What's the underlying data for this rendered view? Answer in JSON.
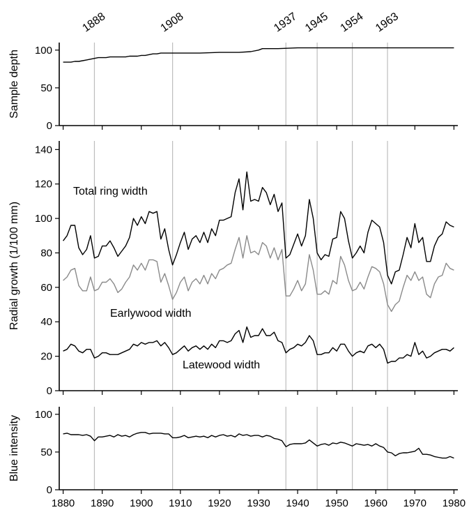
{
  "event_years": [
    "1888",
    "1908",
    "1937",
    "1945",
    "1954",
    "1963"
  ],
  "chart_data": [
    {
      "type": "line",
      "ylabel": "Sample depth",
      "ylim": [
        0,
        110
      ],
      "yticks": [
        0,
        50,
        100
      ],
      "xlim": [
        1879,
        1981
      ],
      "series": [
        {
          "color": "#000000",
          "x": [
            1880,
            1881,
            1882,
            1883,
            1884,
            1885,
            1886,
            1887,
            1888,
            1889,
            1890,
            1891,
            1892,
            1893,
            1894,
            1895,
            1896,
            1897,
            1898,
            1899,
            1900,
            1901,
            1902,
            1903,
            1904,
            1905,
            1906,
            1907,
            1908,
            1909,
            1910,
            1915,
            1920,
            1925,
            1928,
            1930,
            1931,
            1935,
            1940,
            1945,
            1950,
            1960,
            1970,
            1980
          ],
          "values": [
            84,
            84,
            84,
            85,
            85,
            86,
            87,
            88,
            89,
            90,
            90,
            90,
            91,
            91,
            91,
            91,
            91,
            92,
            92,
            92,
            93,
            93,
            94,
            95,
            95,
            96,
            96,
            96,
            96,
            96,
            96,
            96,
            97,
            97,
            98,
            100,
            102,
            102,
            103,
            103,
            103,
            103,
            103,
            103
          ]
        }
      ]
    },
    {
      "type": "line",
      "ylabel": "Radial growth (1/100 mm)",
      "ylim": [
        0,
        145
      ],
      "yticks": [
        0,
        20,
        40,
        60,
        80,
        100,
        120,
        140
      ],
      "xlim": [
        1879,
        1981
      ],
      "annotations": [
        "Total ring width",
        "Earlywood width",
        "Latewood width"
      ],
      "series": [
        {
          "color": "#000000",
          "x": [
            1880,
            1881,
            1882,
            1883,
            1884,
            1885,
            1886,
            1887,
            1888,
            1889,
            1890,
            1891,
            1892,
            1893,
            1894,
            1895,
            1896,
            1897,
            1898,
            1899,
            1900,
            1901,
            1902,
            1903,
            1904,
            1905,
            1906,
            1907,
            1908,
            1909,
            1910,
            1911,
            1912,
            1913,
            1914,
            1915,
            1916,
            1917,
            1918,
            1919,
            1920,
            1921,
            1922,
            1923,
            1924,
            1925,
            1926,
            1927,
            1928,
            1929,
            1930,
            1931,
            1932,
            1933,
            1934,
            1935,
            1936,
            1937,
            1938,
            1939,
            1940,
            1941,
            1942,
            1943,
            1944,
            1945,
            1946,
            1947,
            1948,
            1949,
            1950,
            1951,
            1952,
            1953,
            1954,
            1955,
            1956,
            1957,
            1958,
            1959,
            1960,
            1961,
            1962,
            1963,
            1964,
            1965,
            1966,
            1967,
            1968,
            1969,
            1970,
            1971,
            1972,
            1973,
            1974,
            1975,
            1976,
            1977,
            1978,
            1979,
            1980
          ],
          "values": [
            87,
            90,
            96,
            96,
            83,
            79,
            82,
            90,
            77,
            78,
            84,
            84,
            87,
            83,
            78,
            81,
            84,
            89,
            100,
            96,
            101,
            97,
            104,
            103,
            104,
            88,
            94,
            82,
            73,
            79,
            86,
            92,
            82,
            88,
            90,
            86,
            92,
            86,
            94,
            90,
            99,
            99,
            100,
            101,
            115,
            123,
            105,
            127,
            110,
            111,
            110,
            118,
            115,
            108,
            114,
            104,
            109,
            77,
            79,
            85,
            91,
            84,
            90,
            111,
            100,
            80,
            76,
            79,
            78,
            88,
            89,
            104,
            100,
            87,
            77,
            80,
            84,
            80,
            92,
            99,
            97,
            95,
            86,
            67,
            62,
            69,
            70,
            79,
            89,
            83,
            97,
            86,
            89,
            75,
            75,
            84,
            89,
            91,
            98,
            96,
            95
          ]
        },
        {
          "color": "#8a8a8a",
          "x": [
            1880,
            1881,
            1882,
            1883,
            1884,
            1885,
            1886,
            1887,
            1888,
            1889,
            1890,
            1891,
            1892,
            1893,
            1894,
            1895,
            1896,
            1897,
            1898,
            1899,
            1900,
            1901,
            1902,
            1903,
            1904,
            1905,
            1906,
            1907,
            1908,
            1909,
            1910,
            1911,
            1912,
            1913,
            1914,
            1915,
            1916,
            1917,
            1918,
            1919,
            1920,
            1921,
            1922,
            1923,
            1924,
            1925,
            1926,
            1927,
            1928,
            1929,
            1930,
            1931,
            1932,
            1933,
            1934,
            1935,
            1936,
            1937,
            1938,
            1939,
            1940,
            1941,
            1942,
            1943,
            1944,
            1945,
            1946,
            1947,
            1948,
            1949,
            1950,
            1951,
            1952,
            1953,
            1954,
            1955,
            1956,
            1957,
            1958,
            1959,
            1960,
            1961,
            1962,
            1963,
            1964,
            1965,
            1966,
            1967,
            1968,
            1969,
            1970,
            1971,
            1972,
            1973,
            1974,
            1975,
            1976,
            1977,
            1978,
            1979,
            1980
          ],
          "values": [
            64,
            66,
            70,
            71,
            61,
            58,
            58,
            66,
            58,
            59,
            63,
            63,
            65,
            62,
            57,
            59,
            63,
            66,
            73,
            70,
            74,
            70,
            76,
            76,
            75,
            63,
            68,
            61,
            53,
            57,
            63,
            66,
            58,
            63,
            65,
            62,
            67,
            62,
            68,
            65,
            70,
            71,
            73,
            74,
            82,
            89,
            77,
            90,
            80,
            81,
            79,
            86,
            84,
            77,
            83,
            76,
            82,
            55,
            55,
            59,
            64,
            58,
            62,
            79,
            70,
            56,
            56,
            58,
            56,
            64,
            62,
            78,
            73,
            64,
            58,
            59,
            63,
            59,
            66,
            72,
            71,
            69,
            62,
            50,
            46,
            50,
            52,
            60,
            67,
            64,
            69,
            64,
            66,
            56,
            54,
            62,
            66,
            67,
            74,
            71,
            70
          ]
        },
        {
          "color": "#000000",
          "x": [
            1880,
            1881,
            1882,
            1883,
            1884,
            1885,
            1886,
            1887,
            1888,
            1889,
            1890,
            1891,
            1892,
            1893,
            1894,
            1895,
            1896,
            1897,
            1898,
            1899,
            1900,
            1901,
            1902,
            1903,
            1904,
            1905,
            1906,
            1907,
            1908,
            1909,
            1910,
            1911,
            1912,
            1913,
            1914,
            1915,
            1916,
            1917,
            1918,
            1919,
            1920,
            1921,
            1922,
            1923,
            1924,
            1925,
            1926,
            1927,
            1928,
            1929,
            1930,
            1931,
            1932,
            1933,
            1934,
            1935,
            1936,
            1937,
            1938,
            1939,
            1940,
            1941,
            1942,
            1943,
            1944,
            1945,
            1946,
            1947,
            1948,
            1949,
            1950,
            1951,
            1952,
            1953,
            1954,
            1955,
            1956,
            1957,
            1958,
            1959,
            1960,
            1961,
            1962,
            1963,
            1964,
            1965,
            1966,
            1967,
            1968,
            1969,
            1970,
            1971,
            1972,
            1973,
            1974,
            1975,
            1976,
            1977,
            1978,
            1979,
            1980
          ],
          "values": [
            23,
            24,
            27,
            26,
            23,
            22,
            24,
            24,
            19,
            20,
            22,
            22,
            21,
            21,
            21,
            22,
            23,
            24,
            27,
            26,
            28,
            27,
            28,
            28,
            29,
            26,
            28,
            25,
            21,
            22,
            24,
            26,
            23,
            25,
            26,
            24,
            26,
            24,
            27,
            25,
            29,
            29,
            28,
            29,
            33,
            35,
            28,
            37,
            31,
            32,
            32,
            36,
            32,
            32,
            34,
            29,
            28,
            22,
            24,
            25,
            27,
            26,
            28,
            32,
            29,
            21,
            21,
            22,
            22,
            25,
            23,
            27,
            27,
            23,
            20,
            22,
            23,
            22,
            26,
            27,
            25,
            27,
            24,
            16,
            17,
            17,
            19,
            19,
            21,
            20,
            28,
            21,
            23,
            19,
            20,
            22,
            23,
            24,
            24,
            23,
            25
          ]
        }
      ]
    },
    {
      "type": "line",
      "ylabel": "Blue intensity",
      "ylim": [
        0,
        110
      ],
      "yticks": [
        0,
        50,
        100
      ],
      "xlabel": "",
      "xlim": [
        1879,
        1981
      ],
      "xticks": [
        1880,
        1890,
        1900,
        1910,
        1920,
        1930,
        1940,
        1950,
        1960,
        1970,
        1980
      ],
      "series": [
        {
          "color": "#000000",
          "x": [
            1880,
            1881,
            1882,
            1883,
            1884,
            1885,
            1886,
            1887,
            1888,
            1889,
            1890,
            1891,
            1892,
            1893,
            1894,
            1895,
            1896,
            1897,
            1898,
            1899,
            1900,
            1901,
            1902,
            1903,
            1904,
            1905,
            1906,
            1907,
            1908,
            1909,
            1910,
            1911,
            1912,
            1913,
            1914,
            1915,
            1916,
            1917,
            1918,
            1919,
            1920,
            1921,
            1922,
            1923,
            1924,
            1925,
            1926,
            1927,
            1928,
            1929,
            1930,
            1931,
            1932,
            1933,
            1934,
            1935,
            1936,
            1937,
            1938,
            1939,
            1940,
            1941,
            1942,
            1943,
            1944,
            1945,
            1946,
            1947,
            1948,
            1949,
            1950,
            1951,
            1952,
            1953,
            1954,
            1955,
            1956,
            1957,
            1958,
            1959,
            1960,
            1961,
            1962,
            1963,
            1964,
            1965,
            1966,
            1967,
            1968,
            1969,
            1970,
            1971,
            1972,
            1973,
            1974,
            1975,
            1976,
            1977,
            1978,
            1979,
            1980
          ],
          "values": [
            74,
            75,
            73,
            73,
            73,
            72,
            73,
            71,
            65,
            70,
            70,
            71,
            72,
            70,
            73,
            71,
            72,
            70,
            73,
            75,
            76,
            76,
            74,
            75,
            75,
            75,
            74,
            74,
            69,
            69,
            70,
            72,
            69,
            70,
            71,
            70,
            71,
            69,
            72,
            70,
            72,
            73,
            71,
            72,
            70,
            74,
            72,
            73,
            71,
            72,
            72,
            70,
            72,
            71,
            68,
            67,
            65,
            57,
            60,
            61,
            61,
            61,
            62,
            66,
            62,
            58,
            60,
            61,
            59,
            62,
            61,
            63,
            62,
            60,
            58,
            61,
            60,
            59,
            60,
            58,
            61,
            58,
            56,
            50,
            49,
            45,
            48,
            49,
            49,
            50,
            51,
            55,
            47,
            47,
            46,
            44,
            43,
            42,
            42,
            44,
            42
          ]
        }
      ]
    }
  ]
}
